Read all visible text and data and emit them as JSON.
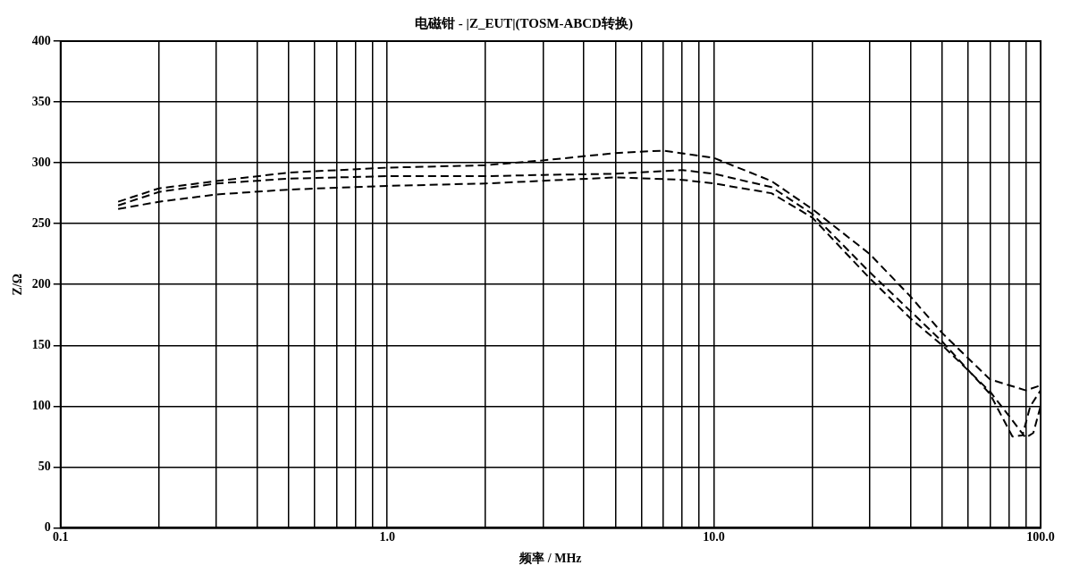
{
  "chart_data": {
    "type": "line",
    "title": "电磁钳 - |Z_EUT|(TOSM-ABCD转换)",
    "xlabel": "频率 / MHz",
    "ylabel": "Z/Ω",
    "log": "x",
    "grid": true,
    "legend": false,
    "marker": "none",
    "line_style": "dashed",
    "xlim": [
      0.1,
      100
    ],
    "ylim": [
      0,
      400
    ],
    "xticks": [
      0.1,
      {
        "value": 0.2,
        "label": null
      },
      {
        "value": 0.3,
        "label": null
      },
      {
        "value": 0.4,
        "label": null
      },
      {
        "value": 0.5,
        "label": null
      },
      {
        "value": 0.6,
        "label": null
      },
      {
        "value": 0.7,
        "label": null
      },
      {
        "value": 0.8,
        "label": null
      },
      {
        "value": 0.9,
        "label": null
      },
      {
        "value": 1,
        "label": "1.0"
      },
      {
        "value": 2,
        "label": null
      },
      {
        "value": 3,
        "label": null
      },
      {
        "value": 4,
        "label": null
      },
      {
        "value": 5,
        "label": null
      },
      {
        "value": 6,
        "label": null
      },
      {
        "value": 7,
        "label": null
      },
      {
        "value": 8,
        "label": null
      },
      {
        "value": 9,
        "label": null
      },
      {
        "value": 10,
        "label": "10.0"
      },
      {
        "value": 20,
        "label": null
      },
      {
        "value": 30,
        "label": null
      },
      {
        "value": 40,
        "label": null
      },
      {
        "value": 50,
        "label": null
      },
      {
        "value": 60,
        "label": null
      },
      {
        "value": 70,
        "label": null
      },
      {
        "value": 80,
        "label": null
      },
      {
        "value": 90,
        "label": null
      },
      {
        "value": 100,
        "label": "100.0"
      }
    ],
    "yticks": [
      0,
      50,
      100,
      150,
      200,
      250,
      300,
      350,
      400
    ],
    "series": [
      {
        "color": "#000000",
        "x": [
          0.15,
          0.2,
          0.3,
          0.5,
          1,
          2,
          3,
          5,
          7,
          10,
          15,
          20,
          30,
          40,
          50,
          70,
          90,
          100
        ],
        "values": [
          268,
          279,
          285,
          292,
          296,
          298,
          302,
          308,
          310,
          304,
          285,
          262,
          225,
          190,
          160,
          122,
          113,
          117
        ]
      },
      {
        "color": "#000000",
        "x": [
          0.15,
          0.2,
          0.3,
          0.5,
          1,
          2,
          3,
          5,
          8,
          10,
          15,
          20,
          30,
          40,
          50,
          70,
          82,
          88,
          93,
          100
        ],
        "values": [
          265,
          276,
          283,
          287,
          289,
          289,
          290,
          291,
          294,
          291,
          280,
          258,
          210,
          178,
          153,
          110,
          75,
          76,
          100,
          113
        ]
      },
      {
        "color": "#000000",
        "x": [
          0.15,
          0.2,
          0.3,
          0.5,
          1,
          2,
          5,
          8,
          10,
          15,
          20,
          30,
          40,
          50,
          70,
          80,
          90,
          95,
          100
        ],
        "values": [
          262,
          268,
          274,
          278,
          281,
          283,
          288,
          286,
          283,
          275,
          255,
          205,
          172,
          150,
          112,
          92,
          74,
          78,
          100
        ]
      }
    ]
  }
}
